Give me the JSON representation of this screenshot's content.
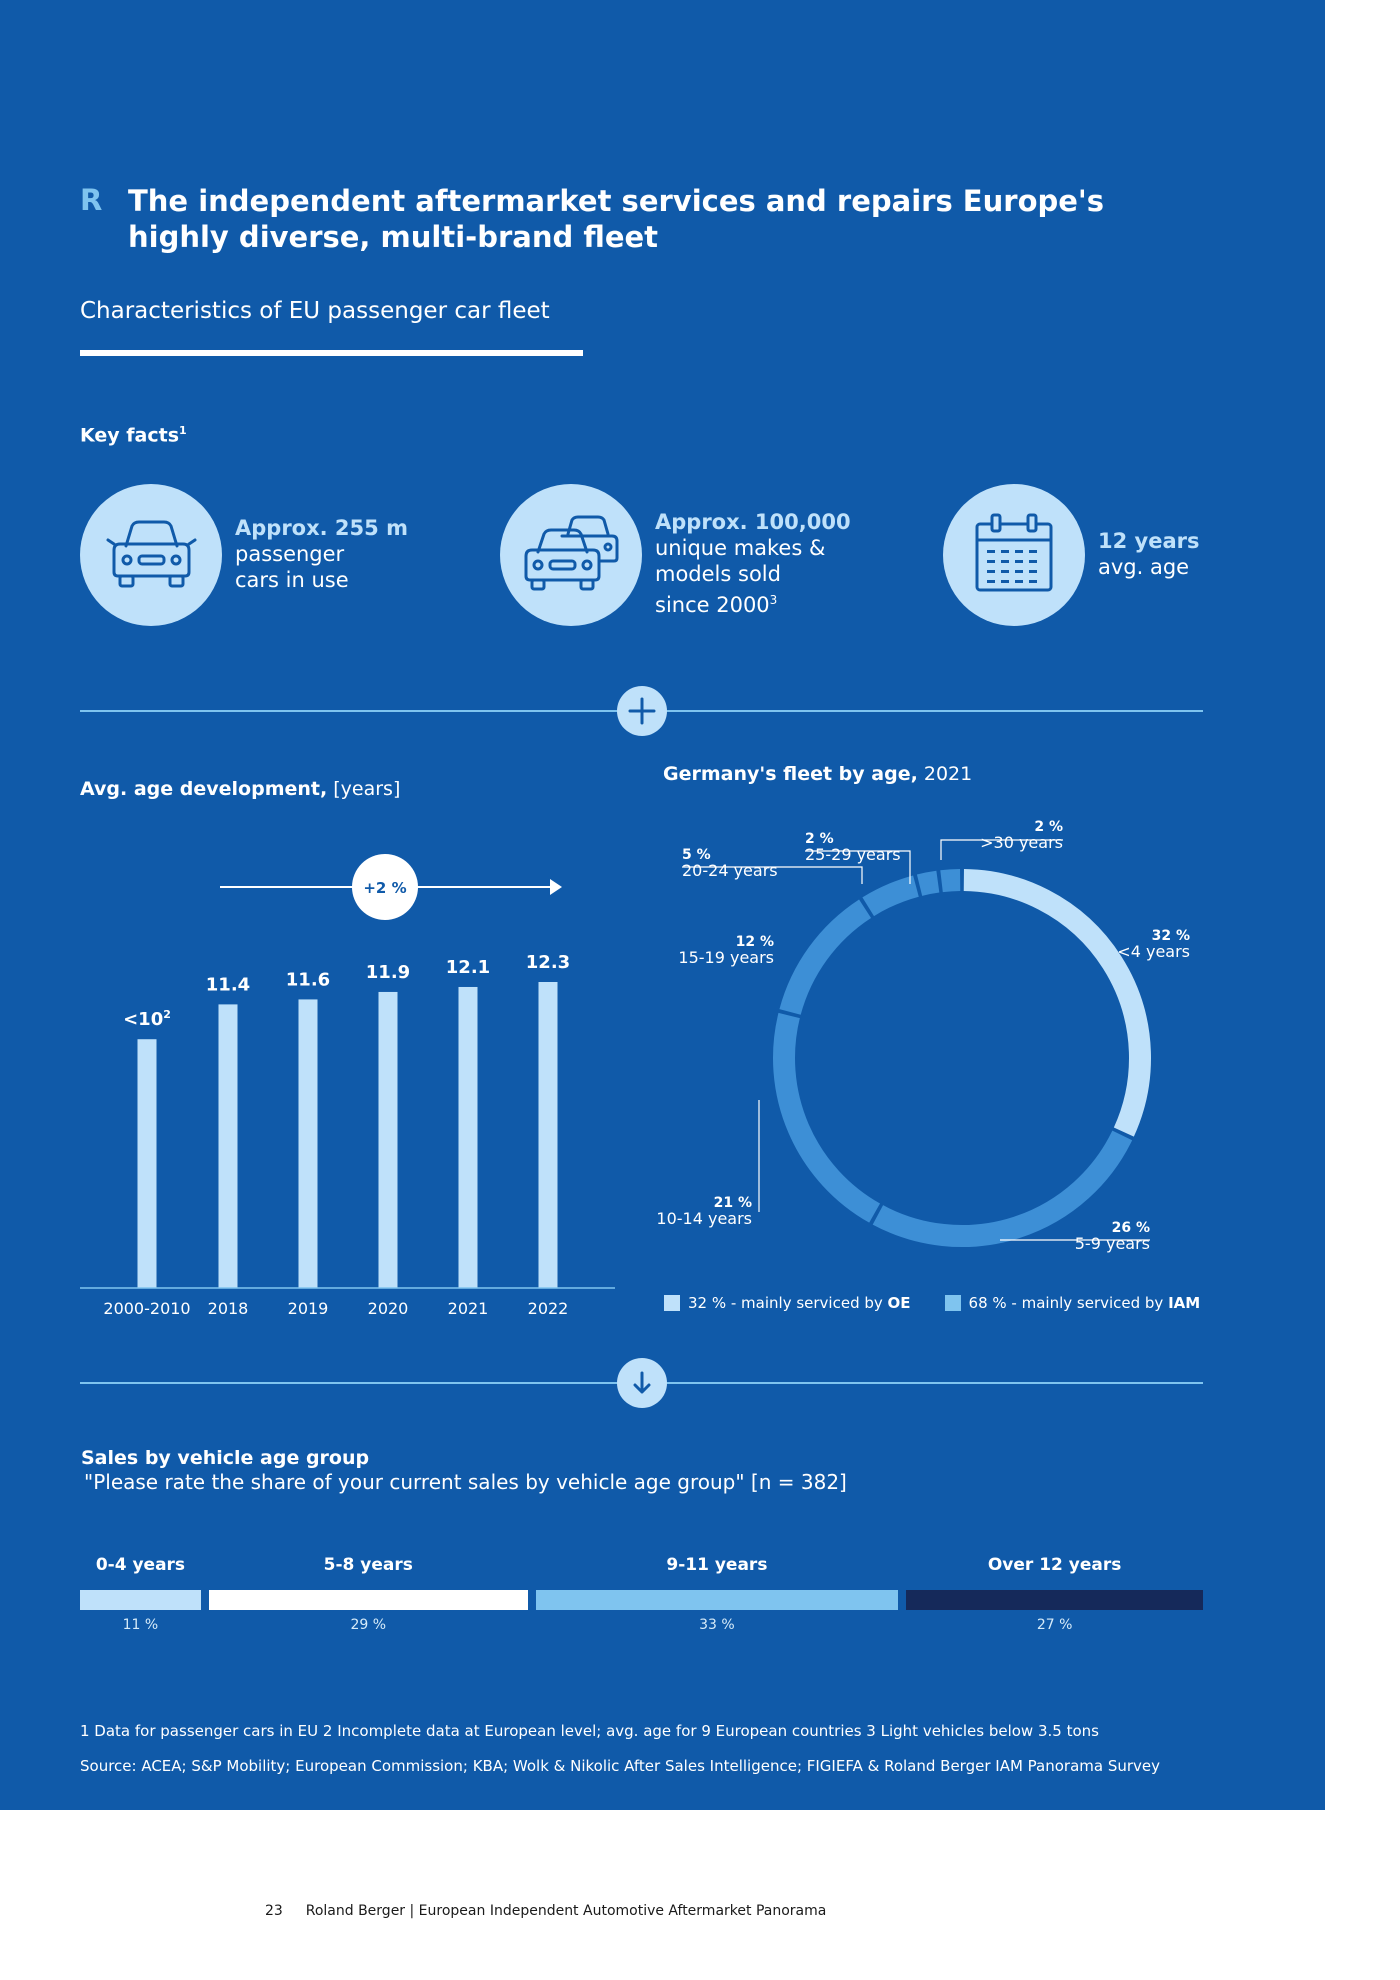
{
  "header": {
    "letter": "R",
    "title_line1": "The independent aftermarket services and repairs Europe's",
    "title_line2": "highly diverse, multi-brand fleet",
    "subtitle": "Characteristics of EU passenger car fleet"
  },
  "key_facts": {
    "label": "Key facts",
    "label_sup": "1",
    "items": [
      {
        "icon": "car-icon",
        "highlight": "Approx. 255 m",
        "lines": [
          "passenger",
          "cars in use"
        ],
        "sup": ""
      },
      {
        "icon": "two-cars-icon",
        "highlight": "Approx. 100,000",
        "lines": [
          "unique makes &",
          "models sold",
          "since 2000"
        ],
        "sup": "3"
      },
      {
        "icon": "calendar-icon",
        "highlight": "12 years",
        "lines": [
          "avg. age"
        ],
        "sup": ""
      }
    ]
  },
  "colors": {
    "background": "#105aa9",
    "light_blue": "#bfe1fa",
    "mid_blue": "#3d8fd6",
    "sky_blue": "#7fc4ef",
    "navy": "#15295a"
  },
  "avg_age_chart": {
    "title_bold": "Avg. age development,",
    "title_light": " [years]",
    "growth_label": "+2 %"
  },
  "germany_chart": {
    "title_bold": "Germany's fleet by age,",
    "title_light": " 2021"
  },
  "sales": {
    "title": "Sales by vehicle age group",
    "question": "\"Please rate the share of your current sales by vehicle age group\" [n = 382]",
    "groups": [
      {
        "label": "0-4 years",
        "value": 11,
        "value_label": "11 %",
        "color": "#bfe1fa"
      },
      {
        "label": "5-8 years",
        "value": 29,
        "value_label": "29 %",
        "color": "#ffffff"
      },
      {
        "label": "9-11 years",
        "value": 33,
        "value_label": "33 %",
        "color": "#7fc4ef"
      },
      {
        "label": "Over 12 years",
        "value": 27,
        "value_label": "27 %",
        "color": "#15295a"
      }
    ]
  },
  "footnotes": {
    "notes": "1  Data for passenger cars in EU    2  Incomplete data at European level; avg. age for 9 European countries    3  Light vehicles below 3.5 tons",
    "source": "Source: ACEA; S&P Mobility; European Commission; KBA; Wolk & Nikolic After Sales Intelligence; FIGIEFA & Roland Berger IAM Panorama Survey"
  },
  "page_footer": {
    "page_number": "23",
    "text": "Roland Berger | European Independent Automotive Aftermarket Panorama"
  },
  "chart_data": [
    {
      "type": "bar",
      "title": "Avg. age development, [years]",
      "categories": [
        "2000-2010",
        "2018",
        "2019",
        "2020",
        "2021",
        "2022"
      ],
      "values": [
        10,
        11.4,
        11.6,
        11.9,
        12.1,
        12.3
      ],
      "value_labels": [
        "<10",
        "11.4",
        "11.6",
        "11.9",
        "12.1",
        "12.3"
      ],
      "value_label_sups": [
        "2",
        "",
        "",
        "",
        "",
        ""
      ],
      "annotation": "+2 %",
      "ylim": [
        0,
        12.3
      ],
      "grid": false
    },
    {
      "type": "pie",
      "donut": true,
      "title": "Germany's fleet by age, 2021",
      "slices": [
        {
          "label": "<4 years",
          "value": 32,
          "value_label": "32 %",
          "group": "OE"
        },
        {
          "label": "5-9 years",
          "value": 26,
          "value_label": "26 %",
          "group": "IAM"
        },
        {
          "label": "10-14 years",
          "value": 21,
          "value_label": "21 %",
          "group": "IAM"
        },
        {
          "label": "15-19 years",
          "value": 12,
          "value_label": "12 %",
          "group": "IAM"
        },
        {
          "label": "20-24 years",
          "value": 5,
          "value_label": "5 %",
          "group": "IAM"
        },
        {
          "label": "25-29 years",
          "value": 2,
          "value_label": "2 %",
          "group": "IAM"
        },
        {
          "label": ">30 years",
          "value": 2,
          "value_label": "2 %",
          "group": "IAM"
        }
      ],
      "legend": [
        {
          "text": "32 % - mainly serviced by ",
          "bold": "OE",
          "color": "#bfe1fa"
        },
        {
          "text": "68 % - mainly serviced by ",
          "bold": "IAM",
          "color": "#7fc4ef"
        }
      ],
      "legend_position": "bottom"
    }
  ]
}
